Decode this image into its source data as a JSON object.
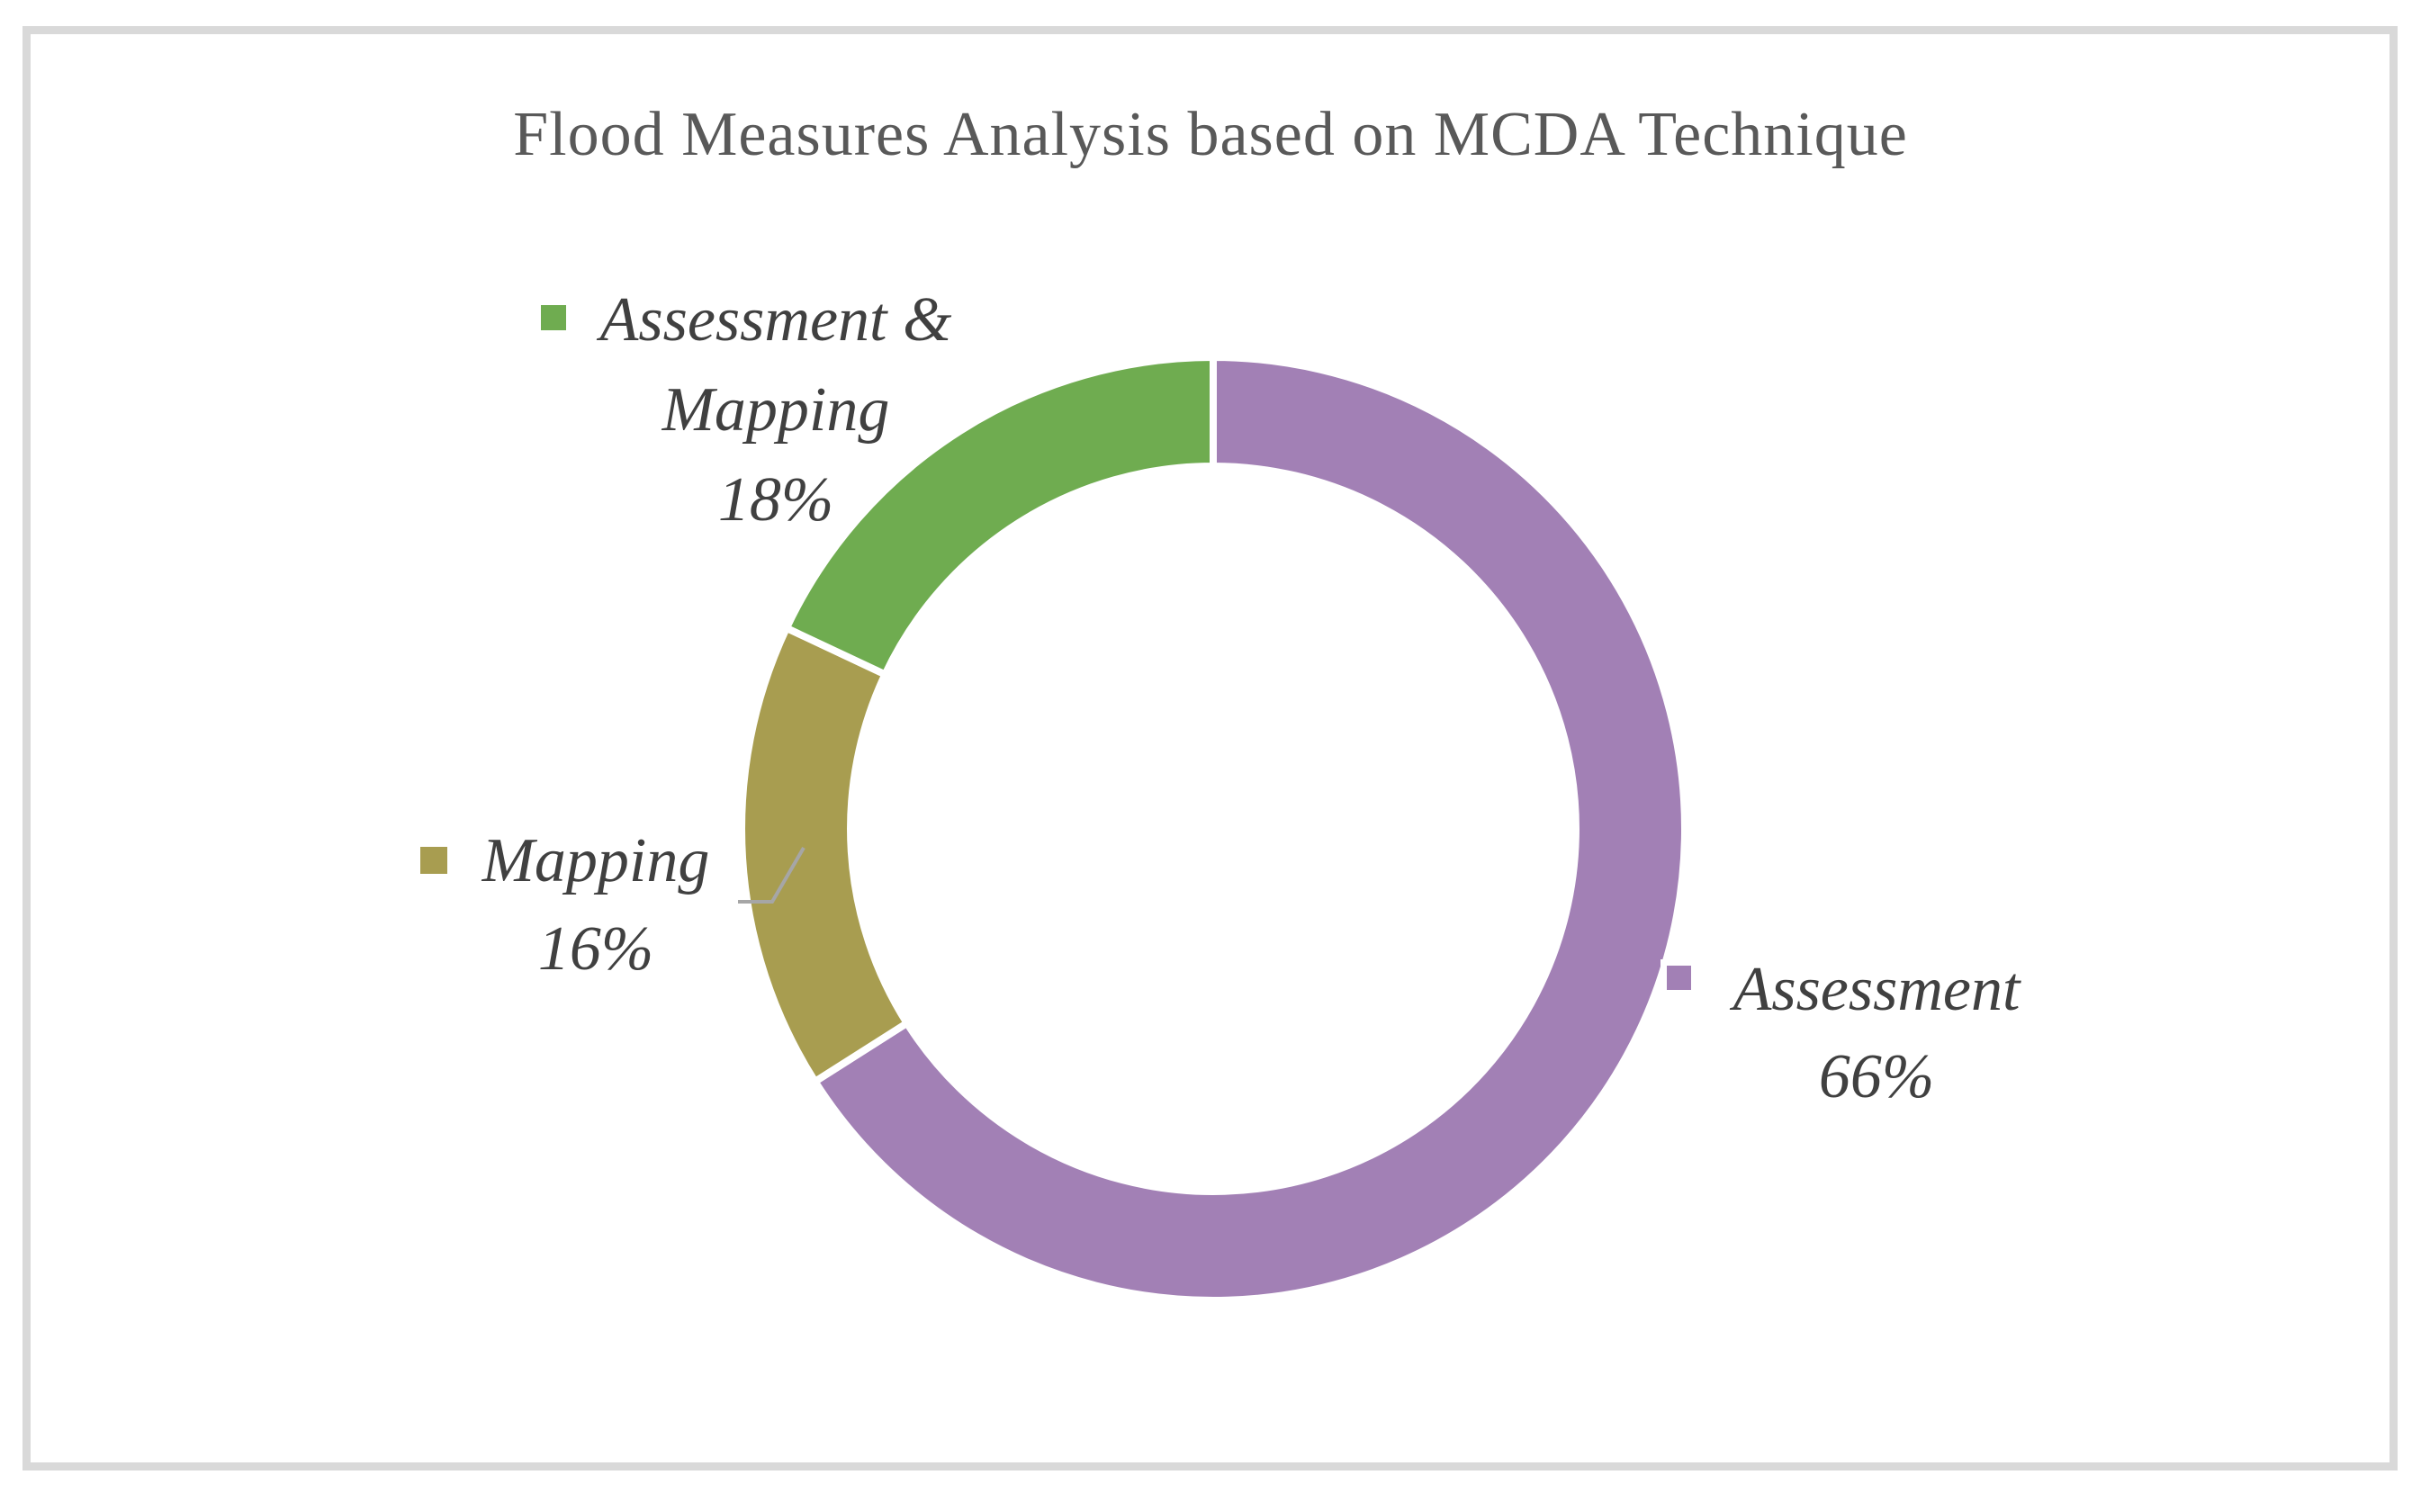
{
  "frame": {
    "border_color": "#D9D9D9",
    "background": "#FFFFFF"
  },
  "chart_data": {
    "type": "pie",
    "subtype": "doughnut",
    "title": "Flood Measures Analysis based on MCDA Technique",
    "categories": [
      "Assessment",
      "Mapping",
      "Assessment & Mapping"
    ],
    "values": [
      66,
      16,
      18
    ],
    "unit": "%",
    "colors": [
      "#A280B5",
      "#A89D50",
      "#6FAC50"
    ],
    "start_angle_deg": 0,
    "direction": "clockwise",
    "hole_ratio": 0.77,
    "slice_gap_color": "#FFFFFF",
    "legend": "none",
    "axes": "none",
    "title_color": "#595959",
    "label_text_color": "#404040",
    "leader_line_color": "#A6A6A6",
    "data_labels": [
      {
        "category": "Assessment",
        "lines": [
          "Assessment",
          "66%"
        ]
      },
      {
        "category": "Mapping",
        "lines": [
          "Mapping",
          "16%"
        ],
        "leader_line": true
      },
      {
        "category": "Assessment & Mapping",
        "lines": [
          "Assessment &",
          "Mapping",
          "18%"
        ]
      }
    ]
  }
}
